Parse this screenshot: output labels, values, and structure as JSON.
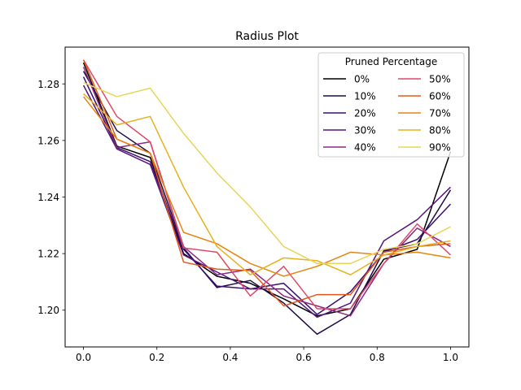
{
  "chart_data": {
    "type": "line",
    "title": "Radius Plot",
    "xlabel": "",
    "ylabel": "",
    "xlim": [
      -0.05,
      1.05
    ],
    "ylim": [
      1.187,
      1.293
    ],
    "xticks": [
      0.0,
      0.2,
      0.4,
      0.6,
      0.8,
      1.0
    ],
    "xtick_labels": [
      "0.0",
      "0.2",
      "0.4",
      "0.6",
      "0.8",
      "1.0"
    ],
    "yticks": [
      1.2,
      1.22,
      1.24,
      1.26,
      1.28
    ],
    "ytick_labels": [
      "1.20",
      "1.22",
      "1.24",
      "1.26",
      "1.28"
    ],
    "grid": false,
    "legend": {
      "title": "Pruned Percentage",
      "placement": "upper right",
      "columns": 2
    },
    "x": [
      0.0,
      0.0909,
      0.1818,
      0.2727,
      0.3636,
      0.4545,
      0.5455,
      0.6364,
      0.7273,
      0.8182,
      0.9091,
      1.0
    ],
    "series": [
      {
        "name": "0%",
        "color": "#000004",
        "values": [
          1.2875,
          1.258,
          1.254,
          1.22,
          1.212,
          1.2095,
          1.204,
          1.198,
          1.2005,
          1.218,
          1.2215,
          1.256
        ]
      },
      {
        "name": "10%",
        "color": "#1f0c48",
        "values": [
          1.2845,
          1.2635,
          1.2555,
          1.222,
          1.208,
          1.2105,
          1.2025,
          1.1915,
          1.1985,
          1.221,
          1.2235,
          1.2425
        ]
      },
      {
        "name": "20%",
        "color": "#3b0f70",
        "values": [
          1.2825,
          1.2575,
          1.2525,
          1.2215,
          1.2085,
          1.2075,
          1.2095,
          1.1985,
          1.2065,
          1.2205,
          1.225,
          1.2375
        ]
      },
      {
        "name": "30%",
        "color": "#57157e",
        "values": [
          1.2795,
          1.257,
          1.2515,
          1.2195,
          1.2135,
          1.2075,
          1.2075,
          1.1975,
          1.2025,
          1.2245,
          1.232,
          1.2435
        ]
      },
      {
        "name": "40%",
        "color": "#8c2981",
        "values": [
          1.286,
          1.2575,
          1.2595,
          1.2225,
          1.2125,
          1.2145,
          1.205,
          1.2015,
          1.198,
          1.2165,
          1.229,
          1.2225
        ]
      },
      {
        "name": "50%",
        "color": "#de4968",
        "values": [
          1.2885,
          1.2685,
          1.2595,
          1.222,
          1.2205,
          1.205,
          1.2155,
          1.2005,
          1.2005,
          1.2165,
          1.2305,
          1.2195
        ]
      },
      {
        "name": "60%",
        "color": "#e3581a",
        "values": [
          1.2885,
          1.2605,
          1.2555,
          1.217,
          1.2145,
          1.214,
          1.2015,
          1.2055,
          1.2055,
          1.2205,
          1.2225,
          1.2235
        ]
      },
      {
        "name": "70%",
        "color": "#e88511",
        "values": [
          1.2755,
          1.2605,
          1.2555,
          1.2275,
          1.2235,
          1.2165,
          1.212,
          1.2155,
          1.2205,
          1.2195,
          1.2205,
          1.2185
        ]
      },
      {
        "name": "80%",
        "color": "#e8b01e",
        "values": [
          1.2765,
          1.2655,
          1.2685,
          1.2435,
          1.2225,
          1.2125,
          1.2185,
          1.2175,
          1.2125,
          1.2195,
          1.2225,
          1.2245
        ]
      },
      {
        "name": "90%",
        "color": "#e6d55a",
        "values": [
          1.2805,
          1.2755,
          1.2785,
          1.2625,
          1.2485,
          1.2365,
          1.2225,
          1.2165,
          1.2165,
          1.2215,
          1.2235,
          1.2295
        ]
      }
    ]
  }
}
